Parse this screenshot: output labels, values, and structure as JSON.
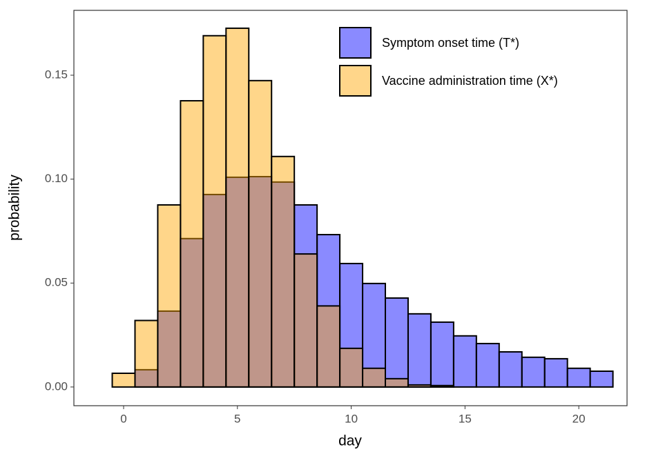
{
  "chart_data": {
    "type": "histogram",
    "x_label": "day",
    "y_label": "probability",
    "bins": [
      -0.5,
      0.5,
      1.5,
      2.5,
      3.5,
      4.5,
      5.5,
      6.5,
      7.5,
      8.5,
      9.5,
      10.5,
      11.5,
      12.5,
      13.5,
      14.5,
      15.5,
      16.5,
      17.5,
      18.5,
      19.5,
      20.5,
      21.5
    ],
    "series": [
      {
        "name": "Symptom onset time (T*)",
        "color": "#0000ff",
        "values": [
          0,
          0.0083,
          0.0365,
          0.0714,
          0.0926,
          0.1009,
          0.1012,
          0.0986,
          0.0876,
          0.0733,
          0.0594,
          0.0498,
          0.0428,
          0.0352,
          0.0312,
          0.0246,
          0.0209,
          0.0169,
          0.0143,
          0.0136,
          0.009,
          0.0076
        ]
      },
      {
        "name": "Vaccine administration time (X*)",
        "color": "#ffa500",
        "values": [
          0.0066,
          0.032,
          0.0876,
          0.1377,
          0.169,
          0.1726,
          0.1474,
          0.1109,
          0.064,
          0.039,
          0.0186,
          0.009,
          0.004,
          0.001,
          0.0007,
          0,
          0,
          0,
          0,
          0,
          0,
          0
        ]
      }
    ],
    "fill_opacity": 0.46,
    "xlim": [
      -2.185,
      22.12
    ],
    "xticks": [
      0,
      5,
      10,
      15,
      20
    ],
    "ylim": [
      -0.009,
      0.1812
    ],
    "yticks": [
      {
        "value": 0,
        "label": "0.00"
      },
      {
        "value": 0.05,
        "label": "0.05"
      },
      {
        "value": 0.1,
        "label": "0.10"
      },
      {
        "value": 0.15,
        "label": "0.15"
      }
    ],
    "legend": "top-right"
  }
}
